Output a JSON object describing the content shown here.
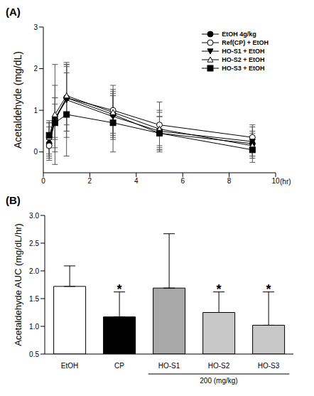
{
  "chart_data": [
    {
      "type": "line",
      "panel": "(A)",
      "x_label": "(hr)",
      "y_label": "Acetaldehyde (mg/dL)",
      "x": [
        0.25,
        0.5,
        1,
        3,
        5,
        9
      ],
      "xlim": [
        0,
        10
      ],
      "xticks": [
        0,
        2,
        4,
        6,
        8,
        10
      ],
      "ylim": [
        -0.5,
        3
      ],
      "yticks": [
        0,
        1,
        2,
        3
      ],
      "legend": "upper right",
      "series": [
        {
          "name": "EtOH 4g/kg",
          "color": "#000000",
          "marker": "circle",
          "values": [
            0.2,
            0.8,
            1.3,
            0.9,
            0.45,
            0.2
          ],
          "errors": [
            0.4,
            0.5,
            0.8,
            0.6,
            0.4,
            0.3
          ]
        },
        {
          "name": "Ref(CP) + EtOH",
          "color": "#000000",
          "marker": "open_circle",
          "values": [
            0.15,
            0.75,
            1.3,
            1.0,
            0.65,
            0.35
          ],
          "errors": [
            0.3,
            0.4,
            0.8,
            0.6,
            0.55,
            0.3
          ]
        },
        {
          "name": "HO-S1 + EtOH",
          "color": "#000000",
          "marker": "triangle_down",
          "values": [
            0.3,
            0.8,
            1.25,
            0.85,
            0.5,
            0.25
          ],
          "errors": [
            0.4,
            0.8,
            0.9,
            0.5,
            0.5,
            0.35
          ]
        },
        {
          "name": "HO-S2 + EtOH",
          "color": "#000000",
          "marker": "open_triangle",
          "values": [
            0.35,
            0.9,
            1.35,
            0.95,
            0.55,
            0.15
          ],
          "errors": [
            0.4,
            1.2,
            0.7,
            0.5,
            0.4,
            0.3
          ]
        },
        {
          "name": "HO-S3 + EtOH",
          "color": "#000000",
          "marker": "square",
          "values": [
            0.4,
            0.7,
            0.9,
            0.7,
            0.45,
            0.05
          ],
          "errors": [
            0.3,
            0.6,
            1.0,
            0.7,
            0.4,
            0.3
          ]
        }
      ]
    },
    {
      "type": "bar",
      "panel": "(B)",
      "y_label": "Acetaldehyde AUC (mg/dL/hr)",
      "categories": [
        "EtOH",
        "CP",
        "HO-S1",
        "HO-S2",
        "HO-S3"
      ],
      "values": [
        1.72,
        1.17,
        1.69,
        1.25,
        1.02
      ],
      "errors": [
        0.37,
        0.45,
        0.98,
        0.37,
        0.6
      ],
      "colors": [
        "#ffffff",
        "#000000",
        "#a8a8a8",
        "#c8c8c8",
        "#c8c8c8"
      ],
      "ylim": [
        0.5,
        3.0
      ],
      "yticks": [
        0.5,
        {
          "value": 1.0,
          "label": "1.0"
        },
        1.5,
        {
          "value": 2.0,
          "label": "2.0"
        },
        2.5,
        {
          "value": 3.0,
          "label": "3.0"
        }
      ],
      "significance": [
        {
          "category": "CP",
          "text": "*"
        },
        {
          "category": "HO-S2",
          "text": "*"
        },
        {
          "category": "HO-S3",
          "text": "*"
        }
      ],
      "group_label": {
        "text": "200 (mg/kg)",
        "categories": [
          "HO-S1",
          "HO-S2",
          "HO-S3"
        ]
      }
    }
  ]
}
